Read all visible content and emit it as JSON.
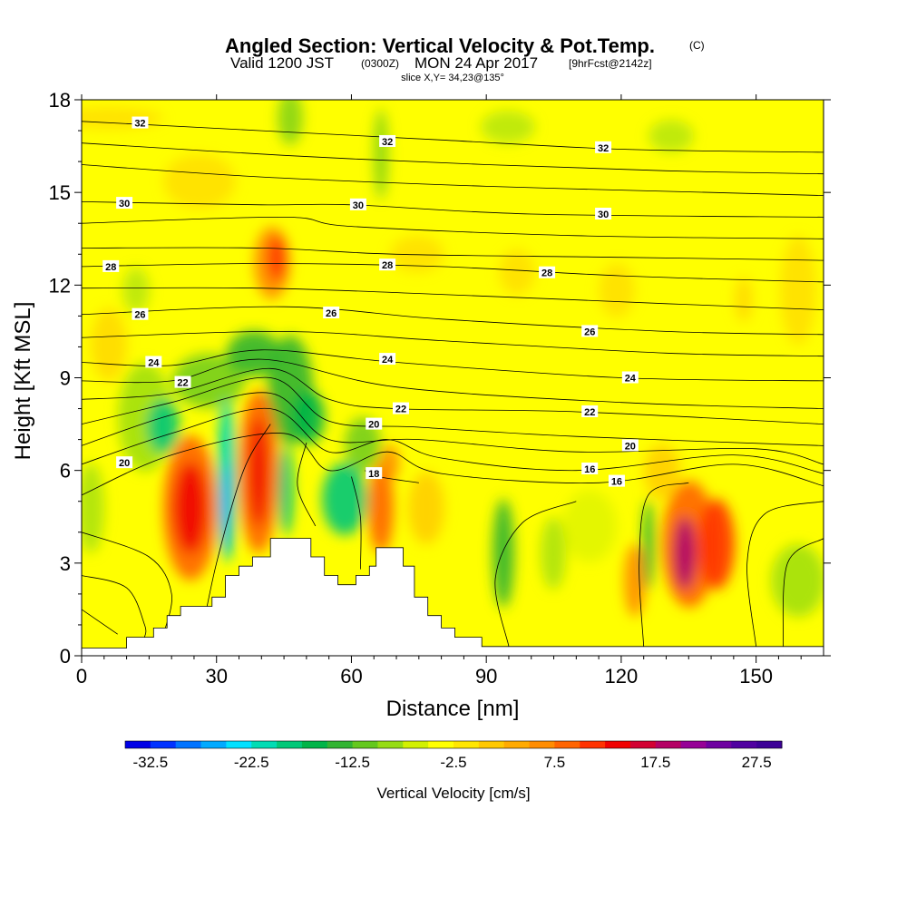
{
  "title": {
    "main": "Angled Section: Vertical Velocity & Pot.Temp.",
    "main_suffix": "(C)",
    "valid_prefix": "Valid 1200 JST",
    "valid_zulu": "(0300Z)",
    "valid_date": "MON 24 Apr 2017",
    "forecast": "[9hrFcst@2142z]",
    "slice": "slice X,Y= 34,23@135°"
  },
  "chart_data": {
    "type": "heatmap",
    "xlabel": "Distance [nm]",
    "ylabel": "Height [Kft MSL]",
    "xlim": [
      0,
      165
    ],
    "ylim": [
      0,
      18
    ],
    "x_ticks": [
      "0",
      "30",
      "60",
      "90",
      "120",
      "150"
    ],
    "x_tick_values": [
      0,
      30,
      60,
      90,
      120,
      150
    ],
    "y_ticks": [
      "0",
      "3",
      "6",
      "9",
      "12",
      "15",
      "18"
    ],
    "y_tick_values": [
      0,
      3,
      6,
      9,
      12,
      15,
      18
    ],
    "colorbar": {
      "label": "Vertical Velocity [cm/s]",
      "min": -35,
      "max": 30,
      "step": 2.5,
      "tick_labels": [
        "-32.5",
        "-22.5",
        "-12.5",
        "-2.5",
        "7.5",
        "17.5",
        "27.5"
      ],
      "tick_values": [
        -32.5,
        -22.5,
        -12.5,
        -2.5,
        7.5,
        17.5,
        27.5
      ],
      "colors": [
        "#0000e6",
        "#0032ff",
        "#0073ff",
        "#00aaff",
        "#00e1ff",
        "#00dcb4",
        "#00c878",
        "#00b448",
        "#32b432",
        "#64c81e",
        "#96dc14",
        "#d2f000",
        "#ffff00",
        "#ffe600",
        "#ffc800",
        "#ffaa00",
        "#ff8c00",
        "#ff6400",
        "#ff3200",
        "#f00000",
        "#d20032",
        "#b40064",
        "#960096",
        "#6e00a0",
        "#5000a0",
        "#3c0096"
      ]
    },
    "contour_labels": [
      {
        "v": "32",
        "x": 13,
        "y": 17.25
      },
      {
        "v": "32",
        "x": 68,
        "y": 16.65
      },
      {
        "v": "32",
        "x": 116,
        "y": 16.45
      },
      {
        "v": "30",
        "x": 9.5,
        "y": 14.65
      },
      {
        "v": "30",
        "x": 61.5,
        "y": 14.6
      },
      {
        "v": "30",
        "x": 116,
        "y": 14.3
      },
      {
        "v": "28",
        "x": 6.5,
        "y": 12.6
      },
      {
        "v": "28",
        "x": 68,
        "y": 12.65
      },
      {
        "v": "28",
        "x": 103.5,
        "y": 12.4
      },
      {
        "v": "26",
        "x": 13,
        "y": 11.05
      },
      {
        "v": "26",
        "x": 55.5,
        "y": 11.1
      },
      {
        "v": "26",
        "x": 113,
        "y": 10.5
      },
      {
        "v": "24",
        "x": 16,
        "y": 9.5
      },
      {
        "v": "24",
        "x": 68,
        "y": 9.6
      },
      {
        "v": "24",
        "x": 122,
        "y": 9.0
      },
      {
        "v": "22",
        "x": 22.5,
        "y": 8.85
      },
      {
        "v": "22",
        "x": 71,
        "y": 8.0
      },
      {
        "v": "22",
        "x": 113,
        "y": 7.9
      },
      {
        "v": "20",
        "x": 9.5,
        "y": 6.25
      },
      {
        "v": "20",
        "x": 65,
        "y": 7.5
      },
      {
        "v": "20",
        "x": 122,
        "y": 6.8
      },
      {
        "v": "18",
        "x": 65,
        "y": 5.9
      },
      {
        "v": "16",
        "x": 113,
        "y": 6.05
      },
      {
        "v": "16",
        "x": 119,
        "y": 5.65
      }
    ],
    "terrain": [
      [
        0,
        0.25
      ],
      [
        10,
        0.25
      ],
      [
        10,
        0.6
      ],
      [
        16,
        0.6
      ],
      [
        16,
        0.9
      ],
      [
        19,
        0.9
      ],
      [
        19,
        1.3
      ],
      [
        22,
        1.3
      ],
      [
        22,
        1.6
      ],
      [
        29,
        1.6
      ],
      [
        29,
        1.9
      ],
      [
        32,
        1.9
      ],
      [
        32,
        2.6
      ],
      [
        35,
        2.6
      ],
      [
        35,
        2.9
      ],
      [
        38,
        2.9
      ],
      [
        38,
        3.2
      ],
      [
        42,
        3.2
      ],
      [
        42,
        3.8
      ],
      [
        51,
        3.8
      ],
      [
        51,
        3.2
      ],
      [
        54,
        3.2
      ],
      [
        54,
        2.6
      ],
      [
        57,
        2.6
      ],
      [
        57,
        2.3
      ],
      [
        61,
        2.3
      ],
      [
        61,
        2.6
      ],
      [
        64,
        2.6
      ],
      [
        64,
        2.9
      ],
      [
        65.5,
        2.9
      ],
      [
        65.5,
        3.5
      ],
      [
        71.5,
        3.5
      ],
      [
        71.5,
        2.9
      ],
      [
        74,
        2.9
      ],
      [
        74,
        1.9
      ],
      [
        77,
        1.9
      ],
      [
        77,
        1.3
      ],
      [
        80,
        1.3
      ],
      [
        80,
        0.9
      ],
      [
        83,
        0.9
      ],
      [
        83,
        0.6
      ],
      [
        89,
        0.6
      ],
      [
        89,
        0.3
      ],
      [
        165,
        0.3
      ]
    ]
  }
}
